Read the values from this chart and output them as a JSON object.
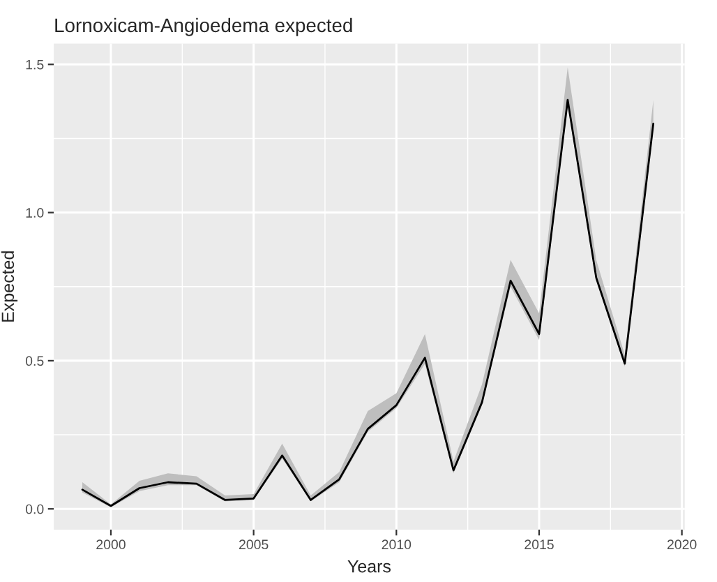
{
  "chart_data": {
    "type": "line",
    "title": "Lornoxicam-Angioedema expected",
    "xlabel": "Years",
    "ylabel": "Expected",
    "x": [
      1999,
      2000,
      2001,
      2002,
      2003,
      2004,
      2005,
      2006,
      2007,
      2008,
      2009,
      2010,
      2011,
      2012,
      2013,
      2014,
      2015,
      2016,
      2017,
      2018,
      2019
    ],
    "series": [
      {
        "color": "#000000",
        "values": [
          0.065,
          0.01,
          0.07,
          0.09,
          0.085,
          0.03,
          0.035,
          0.18,
          0.03,
          0.1,
          0.27,
          0.35,
          0.51,
          0.13,
          0.36,
          0.77,
          0.59,
          1.38,
          0.78,
          0.49,
          1.3
        ],
        "lower": [
          0.055,
          0.005,
          0.06,
          0.08,
          0.08,
          0.025,
          0.03,
          0.17,
          0.025,
          0.09,
          0.26,
          0.34,
          0.49,
          0.12,
          0.35,
          0.75,
          0.57,
          1.36,
          0.77,
          0.48,
          1.28
        ],
        "upper": [
          0.09,
          0.015,
          0.095,
          0.12,
          0.11,
          0.045,
          0.05,
          0.22,
          0.045,
          0.125,
          0.33,
          0.39,
          0.59,
          0.16,
          0.42,
          0.84,
          0.66,
          1.49,
          0.84,
          0.52,
          1.38
        ]
      }
    ],
    "xlim": [
      1998,
      2020.1
    ],
    "xticks": [
      2000,
      2005,
      2010,
      2015,
      2020
    ],
    "ylim": [
      -0.07,
      1.57
    ],
    "yticks": [
      {
        "value": 0,
        "label": "0.0"
      },
      {
        "value": 0.5,
        "label": "0.5"
      },
      {
        "value": 1.0,
        "label": "1.0"
      },
      {
        "value": 1.5,
        "label": "1.5"
      }
    ],
    "grid": true,
    "legend": false
  }
}
